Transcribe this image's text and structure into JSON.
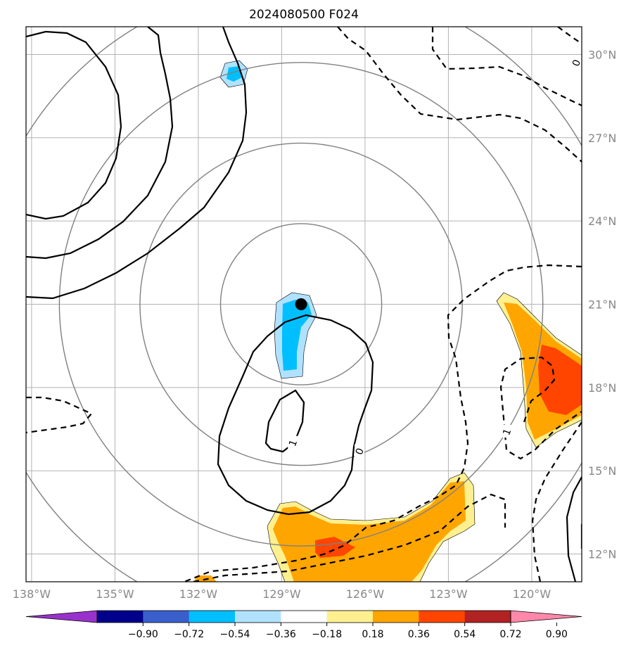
{
  "chart_data": {
    "type": "contour",
    "title": "2024080500 F024",
    "x_axis": {
      "range": [
        -138.2,
        -118.2
      ],
      "tick_values": [
        -138,
        -135,
        -132,
        -129,
        -126,
        -123,
        -120
      ],
      "tick_labels": [
        "138°W",
        "135°W",
        "132°W",
        "129°W",
        "126°W",
        "123°W",
        "120°W"
      ],
      "label_side": "bottom"
    },
    "y_axis": {
      "range": [
        11.0,
        31.0
      ],
      "tick_values": [
        12,
        15,
        18,
        21,
        24,
        27,
        30
      ],
      "tick_labels": [
        "12°N",
        "15°N",
        "18°N",
        "21°N",
        "24°N",
        "27°N",
        "30°N"
      ],
      "label_side": "right"
    },
    "grid": true,
    "center_marker": {
      "lon": -128.3,
      "lat": 21.0
    },
    "range_rings_deg": [
      2.9,
      5.8,
      8.7,
      11.6
    ],
    "contour_labels": [
      {
        "text": "0",
        "lon": -126.2,
        "lat": 15.7
      },
      {
        "text": "1",
        "lon": -128.6,
        "lat": 16.0
      },
      {
        "text": "1",
        "lon": -120.9,
        "lat": 16.4
      },
      {
        "text": "0",
        "lon": -118.4,
        "lat": 29.7
      }
    ],
    "colorbar": {
      "tick_labels": [
        "−0.90",
        "−0.72",
        "−0.54",
        "−0.36",
        "−0.18",
        "0.18",
        "0.36",
        "0.54",
        "0.72",
        "0.90"
      ],
      "colors": [
        "#9932cc",
        "#00008b",
        "#3a5fcd",
        "#00bfff",
        "#b0e2ff",
        "#ffffff",
        "#fff08f",
        "#ffa500",
        "#ff4500",
        "#b22222",
        "#ff88aa"
      ],
      "extend": "both"
    }
  }
}
